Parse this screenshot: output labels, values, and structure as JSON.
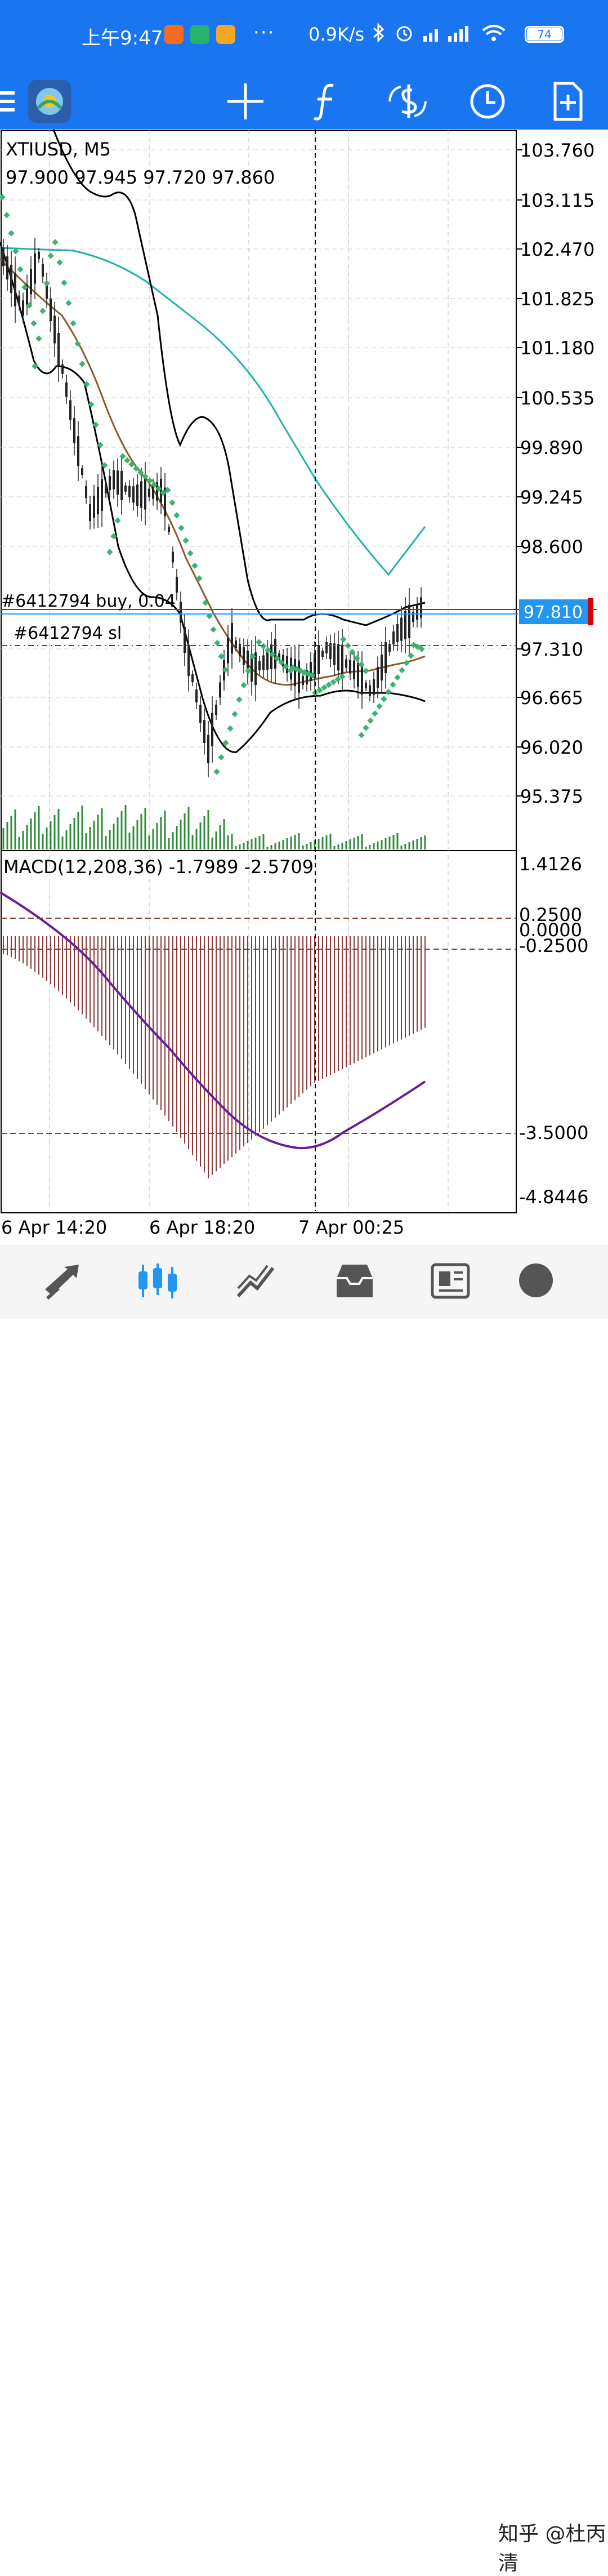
{
  "status_bar": {
    "time": "上午9:47",
    "dots": "···",
    "network_speed": "0.9K/s",
    "battery": "74"
  },
  "toolbar": {
    "icons": [
      "menu-icon",
      "metatrader-logo-icon",
      "crosshair-icon",
      "function-icon",
      "symbol-change-icon",
      "timeframe-clock-icon",
      "new-order-icon"
    ]
  },
  "chart": {
    "symbol_label": "XTIUSD, M5",
    "ohlc_label": "97.900 97.945 97.720 97.860",
    "price_ticks": [
      "103.760",
      "103.115",
      "102.470",
      "101.825",
      "101.180",
      "100.535",
      "99.890",
      "99.245",
      "98.600",
      "97.310",
      "96.665",
      "96.020",
      "95.375"
    ],
    "current_price": "97.810",
    "order_label": "#6412794 buy, 0.04",
    "sl_label": "#6412794 sl",
    "macd_label": "MACD(12,208,36) -1.7989 -2.5709",
    "macd_ticks": [
      "1.4126",
      "0.2500",
      "0.0000",
      "-0.2500",
      "-3.5000",
      "-4.8446"
    ],
    "time_ticks": [
      "6 Apr 14:20",
      "6 Apr 18:20",
      "7 Apr 00:25"
    ],
    "colors": {
      "bull_candle": "#222222",
      "volume": "#2e8b3a",
      "psar": "#3cb371",
      "ma_fast": "#8b5a2b",
      "ma_slow": "#20b2aa",
      "bands": "#000000",
      "macd_hist": "#8b3a3a",
      "macd_signal": "#6a1b9a",
      "price_tag": "#2196f3",
      "order_line": "#b22222"
    }
  },
  "bottom_nav": {
    "items": [
      "quotes-icon",
      "chart-icon",
      "trade-icon",
      "history-icon",
      "news-icon",
      "chat-icon"
    ],
    "watermark": "知乎 @杜丙清"
  }
}
